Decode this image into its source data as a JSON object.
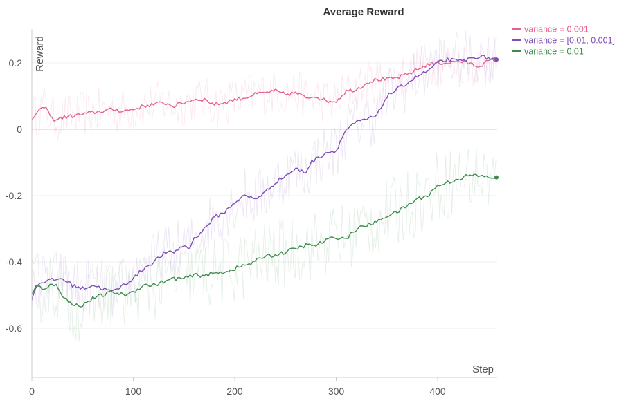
{
  "chart_data": {
    "type": "line",
    "title": "Average Reward",
    "xlabel": "Step",
    "ylabel": "Reward",
    "xlim": [
      0,
      460
    ],
    "ylim": [
      -0.74,
      0.3
    ],
    "x_ticks": [
      0,
      100,
      200,
      300,
      400
    ],
    "y_ticks": [
      0.2,
      0,
      -0.2,
      -0.4,
      -0.6
    ],
    "y_tick_labels": [
      "0.2",
      "0",
      "-0.2",
      "-0.4",
      "-0.6"
    ],
    "grid": true,
    "legend_position": "top-right",
    "series": [
      {
        "name": "variance = 0.001",
        "color": "#e5608f",
        "points": [
          [
            0,
            0.03
          ],
          [
            5,
            0.05
          ],
          [
            10,
            0.06
          ],
          [
            12,
            0.07
          ],
          [
            15,
            0.06
          ],
          [
            20,
            0.03
          ],
          [
            25,
            0.03
          ],
          [
            30,
            0.035
          ],
          [
            40,
            0.04
          ],
          [
            50,
            0.045
          ],
          [
            60,
            0.05
          ],
          [
            70,
            0.055
          ],
          [
            80,
            0.06
          ],
          [
            90,
            0.055
          ],
          [
            100,
            0.06
          ],
          [
            110,
            0.07
          ],
          [
            120,
            0.075
          ],
          [
            130,
            0.08
          ],
          [
            140,
            0.07
          ],
          [
            150,
            0.08
          ],
          [
            160,
            0.09
          ],
          [
            170,
            0.09
          ],
          [
            180,
            0.075
          ],
          [
            190,
            0.08
          ],
          [
            200,
            0.09
          ],
          [
            210,
            0.095
          ],
          [
            220,
            0.105
          ],
          [
            230,
            0.11
          ],
          [
            240,
            0.115
          ],
          [
            250,
            0.105
          ],
          [
            260,
            0.11
          ],
          [
            270,
            0.095
          ],
          [
            280,
            0.1
          ],
          [
            290,
            0.085
          ],
          [
            300,
            0.085
          ],
          [
            310,
            0.115
          ],
          [
            320,
            0.12
          ],
          [
            330,
            0.14
          ],
          [
            340,
            0.15
          ],
          [
            350,
            0.15
          ],
          [
            360,
            0.155
          ],
          [
            370,
            0.165
          ],
          [
            380,
            0.18
          ],
          [
            390,
            0.195
          ],
          [
            400,
            0.2
          ],
          [
            410,
            0.2
          ],
          [
            420,
            0.205
          ],
          [
            430,
            0.2
          ],
          [
            440,
            0.19
          ],
          [
            450,
            0.205
          ],
          [
            458,
            0.21
          ]
        ]
      },
      {
        "name": "variance = [0.01, 0.001]",
        "color": "#7e4db5",
        "points": [
          [
            0,
            -0.51
          ],
          [
            5,
            -0.47
          ],
          [
            10,
            -0.46
          ],
          [
            20,
            -0.455
          ],
          [
            30,
            -0.45
          ],
          [
            40,
            -0.47
          ],
          [
            50,
            -0.48
          ],
          [
            60,
            -0.47
          ],
          [
            70,
            -0.48
          ],
          [
            80,
            -0.49
          ],
          [
            90,
            -0.47
          ],
          [
            100,
            -0.45
          ],
          [
            110,
            -0.42
          ],
          [
            120,
            -0.4
          ],
          [
            130,
            -0.375
          ],
          [
            140,
            -0.37
          ],
          [
            150,
            -0.35
          ],
          [
            155,
            -0.36
          ],
          [
            160,
            -0.33
          ],
          [
            170,
            -0.3
          ],
          [
            180,
            -0.265
          ],
          [
            190,
            -0.25
          ],
          [
            200,
            -0.22
          ],
          [
            210,
            -0.2
          ],
          [
            220,
            -0.21
          ],
          [
            230,
            -0.19
          ],
          [
            240,
            -0.16
          ],
          [
            250,
            -0.14
          ],
          [
            260,
            -0.12
          ],
          [
            270,
            -0.13
          ],
          [
            275,
            -0.1
          ],
          [
            280,
            -0.09
          ],
          [
            290,
            -0.07
          ],
          [
            300,
            -0.065
          ],
          [
            305,
            -0.03
          ],
          [
            310,
            0.0
          ],
          [
            320,
            0.02
          ],
          [
            330,
            0.03
          ],
          [
            340,
            0.04
          ],
          [
            350,
            0.1
          ],
          [
            360,
            0.12
          ],
          [
            370,
            0.14
          ],
          [
            380,
            0.16
          ],
          [
            390,
            0.175
          ],
          [
            400,
            0.2
          ],
          [
            410,
            0.21
          ],
          [
            420,
            0.205
          ],
          [
            430,
            0.21
          ],
          [
            440,
            0.22
          ],
          [
            450,
            0.215
          ],
          [
            458,
            0.21
          ]
        ]
      },
      {
        "name": "variance = 0.01",
        "color": "#3d8c4c",
        "points": [
          [
            0,
            -0.5
          ],
          [
            5,
            -0.47
          ],
          [
            10,
            -0.48
          ],
          [
            20,
            -0.47
          ],
          [
            25,
            -0.47
          ],
          [
            30,
            -0.5
          ],
          [
            40,
            -0.53
          ],
          [
            50,
            -0.53
          ],
          [
            60,
            -0.51
          ],
          [
            70,
            -0.5
          ],
          [
            80,
            -0.49
          ],
          [
            90,
            -0.5
          ],
          [
            100,
            -0.49
          ],
          [
            110,
            -0.47
          ],
          [
            120,
            -0.47
          ],
          [
            130,
            -0.46
          ],
          [
            140,
            -0.45
          ],
          [
            150,
            -0.45
          ],
          [
            160,
            -0.44
          ],
          [
            170,
            -0.44
          ],
          [
            180,
            -0.435
          ],
          [
            190,
            -0.43
          ],
          [
            200,
            -0.42
          ],
          [
            210,
            -0.41
          ],
          [
            220,
            -0.4
          ],
          [
            230,
            -0.38
          ],
          [
            240,
            -0.38
          ],
          [
            250,
            -0.37
          ],
          [
            260,
            -0.36
          ],
          [
            270,
            -0.35
          ],
          [
            280,
            -0.35
          ],
          [
            290,
            -0.335
          ],
          [
            300,
            -0.325
          ],
          [
            310,
            -0.33
          ],
          [
            320,
            -0.3
          ],
          [
            330,
            -0.29
          ],
          [
            340,
            -0.28
          ],
          [
            350,
            -0.26
          ],
          [
            360,
            -0.25
          ],
          [
            370,
            -0.23
          ],
          [
            380,
            -0.21
          ],
          [
            390,
            -0.2
          ],
          [
            400,
            -0.17
          ],
          [
            410,
            -0.16
          ],
          [
            420,
            -0.15
          ],
          [
            430,
            -0.14
          ],
          [
            440,
            -0.14
          ],
          [
            450,
            -0.145
          ],
          [
            458,
            -0.145
          ]
        ]
      }
    ]
  }
}
